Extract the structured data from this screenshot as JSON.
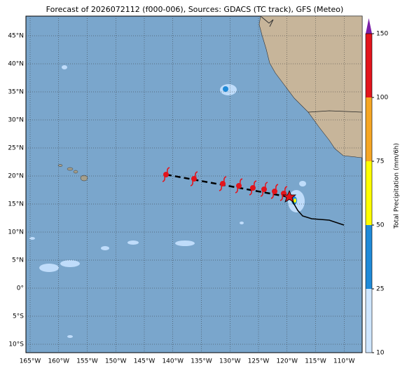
{
  "title": "Forecast of 2026072112 (f000-006), Sources: GDACS (TC track), GFS (Meteo)",
  "latitude_labels": [
    "45°N",
    "40°N",
    "35°N",
    "30°N",
    "25°N",
    "20°N",
    "15°N",
    "10°N",
    "5°N",
    "0°",
    "5°S",
    "10°S"
  ],
  "longitude_labels": [
    "165°W",
    "160°W",
    "155°W",
    "150°W",
    "145°W",
    "140°W",
    "135°W",
    "130°W",
    "125°W",
    "120°W",
    "115°W",
    "110°W"
  ],
  "colorbar": {
    "label": "Total Precipitation (mm/6h)",
    "ticks": [
      10,
      25,
      50,
      75,
      100,
      150
    ],
    "colors": [
      "#cfe6ff",
      "#1f8ad8",
      "#ffff00",
      "#f6a623",
      "#e3141c"
    ],
    "extend_color": "#7b1fa8"
  }
}
